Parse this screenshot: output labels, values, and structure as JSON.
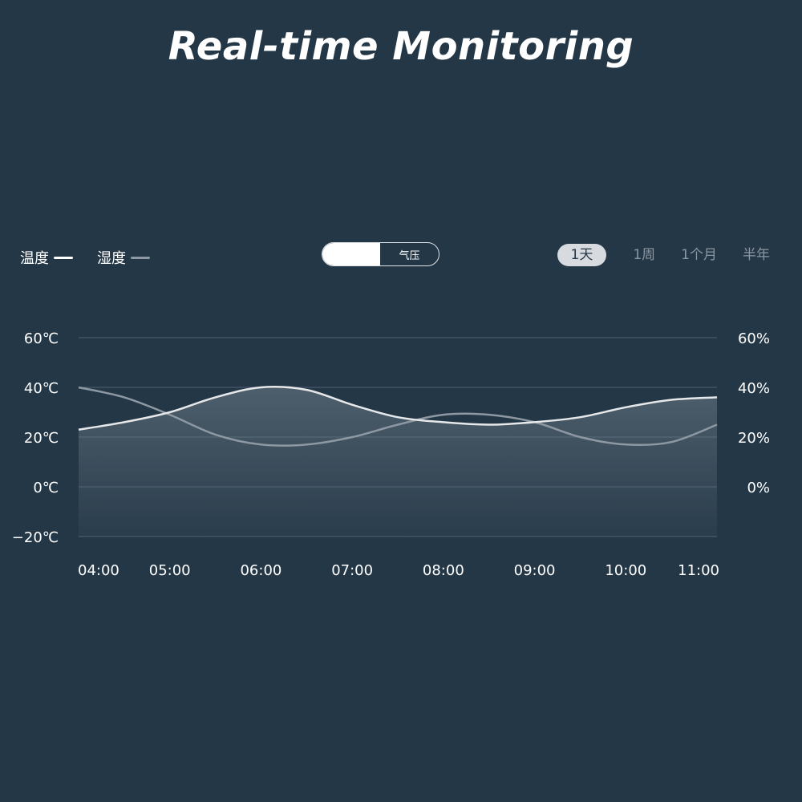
{
  "title": "Real-time Monitoring",
  "legend": {
    "temperature": "温度",
    "humidity": "湿度"
  },
  "toggle": {
    "option_right": "气压"
  },
  "time_ranges": [
    "1天",
    "1周",
    "1个月",
    "半年"
  ],
  "active_range": "1天",
  "colors": {
    "background": "#243746",
    "temperature": "#e6e8ea",
    "humidity": "#8d98a2",
    "grid": "#4f6170"
  },
  "chart_data": {
    "type": "line",
    "x": [
      "04:00",
      "04:30",
      "05:00",
      "05:30",
      "06:00",
      "06:30",
      "07:00",
      "07:30",
      "08:00",
      "08:30",
      "09:00",
      "09:30",
      "10:00",
      "10:30",
      "11:00"
    ],
    "x_tick_labels": [
      "04:00",
      "05:00",
      "06:00",
      "07:00",
      "08:00",
      "09:00",
      "10:00",
      "11:00"
    ],
    "series": [
      {
        "name": "温度",
        "axis": "left",
        "unit": "℃",
        "values": [
          23,
          26,
          30,
          36,
          40,
          39,
          33,
          28,
          26,
          25,
          26,
          28,
          32,
          35,
          36
        ]
      },
      {
        "name": "湿度",
        "axis": "right",
        "unit": "%",
        "values": [
          40,
          36,
          29,
          21,
          17,
          17,
          20,
          25,
          29,
          29,
          26,
          20,
          17,
          18,
          25
        ]
      }
    ],
    "y_left": {
      "ticks": [
        "60℃",
        "40℃",
        "20℃",
        "0℃",
        "−20℃"
      ],
      "range": [
        -20,
        60
      ]
    },
    "y_right": {
      "ticks": [
        "60%",
        "40%",
        "20%",
        "0%"
      ],
      "range": [
        -20,
        60
      ]
    },
    "grid": true,
    "area_fill": true
  }
}
